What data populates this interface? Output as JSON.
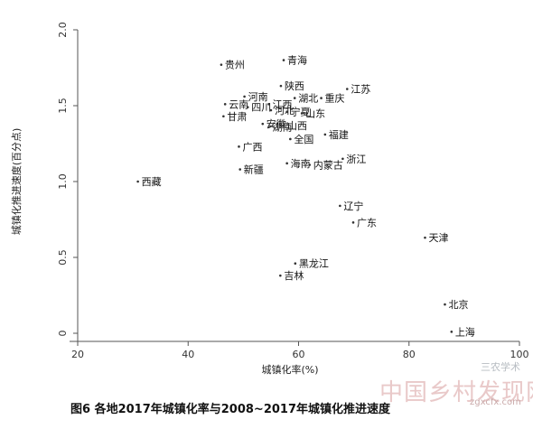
{
  "chart_data": {
    "type": "scatter",
    "xlabel": "城镇化率(%)",
    "ylabel": "城镇化推进速度(百分点)",
    "xlim": [
      20,
      100
    ],
    "ylim": [
      0,
      2.0
    ],
    "xticks": [
      "20",
      "40",
      "60",
      "80",
      "100"
    ],
    "yticks": [
      "0",
      "0.5",
      "1.0",
      "1.5",
      "2.0"
    ],
    "grid": false,
    "points": [
      {
        "label": "贵州",
        "x": 46.0,
        "y": 1.77
      },
      {
        "label": "青海",
        "x": 57.3,
        "y": 1.8
      },
      {
        "label": "陕西",
        "x": 56.8,
        "y": 1.63
      },
      {
        "label": "江苏",
        "x": 68.8,
        "y": 1.61
      },
      {
        "label": "河南",
        "x": 50.2,
        "y": 1.56
      },
      {
        "label": "湖北",
        "x": 59.3,
        "y": 1.55
      },
      {
        "label": "重庆",
        "x": 64.1,
        "y": 1.55
      },
      {
        "label": "云南",
        "x": 46.7,
        "y": 1.51
      },
      {
        "label": "四川",
        "x": 50.8,
        "y": 1.49
      },
      {
        "label": "江西",
        "x": 54.6,
        "y": 1.51
      },
      {
        "label": "河北",
        "x": 55.0,
        "y": 1.47
      },
      {
        "label": "宁夏",
        "x": 57.9,
        "y": 1.46
      },
      {
        "label": "山东",
        "x": 60.6,
        "y": 1.45
      },
      {
        "label": "甘肃",
        "x": 46.4,
        "y": 1.43
      },
      {
        "label": "安徽",
        "x": 53.5,
        "y": 1.38
      },
      {
        "label": "湖南",
        "x": 54.6,
        "y": 1.36
      },
      {
        "label": "山西",
        "x": 57.3,
        "y": 1.37
      },
      {
        "label": "福建",
        "x": 64.8,
        "y": 1.31
      },
      {
        "label": "全国",
        "x": 58.5,
        "y": 1.28
      },
      {
        "label": "广西",
        "x": 49.2,
        "y": 1.23
      },
      {
        "label": "浙江",
        "x": 68.0,
        "y": 1.15
      },
      {
        "label": "海南",
        "x": 57.9,
        "y": 1.12
      },
      {
        "label": "内蒙古",
        "x": 62.0,
        "y": 1.11
      },
      {
        "label": "新疆",
        "x": 49.4,
        "y": 1.08
      },
      {
        "label": "西藏",
        "x": 30.9,
        "y": 1.0
      },
      {
        "label": "辽宁",
        "x": 67.5,
        "y": 0.84
      },
      {
        "label": "广东",
        "x": 69.9,
        "y": 0.73
      },
      {
        "label": "天津",
        "x": 82.9,
        "y": 0.63
      },
      {
        "label": "黑龙江",
        "x": 59.4,
        "y": 0.46
      },
      {
        "label": "吉林",
        "x": 56.7,
        "y": 0.38
      },
      {
        "label": "北京",
        "x": 86.5,
        "y": 0.19
      },
      {
        "label": "上海",
        "x": 87.7,
        "y": 0.01
      }
    ]
  },
  "caption": "图6 各地2017年城镇化率与2008~2017年城镇化推进速度",
  "watermarks": {
    "brand": "三农学术",
    "banner": "中国乡村发现网",
    "site": "zgxcfx.com"
  },
  "colors": {
    "axis": "#555555",
    "point": "#333333",
    "text": "#111111",
    "watermark": "#e9c9c9"
  }
}
